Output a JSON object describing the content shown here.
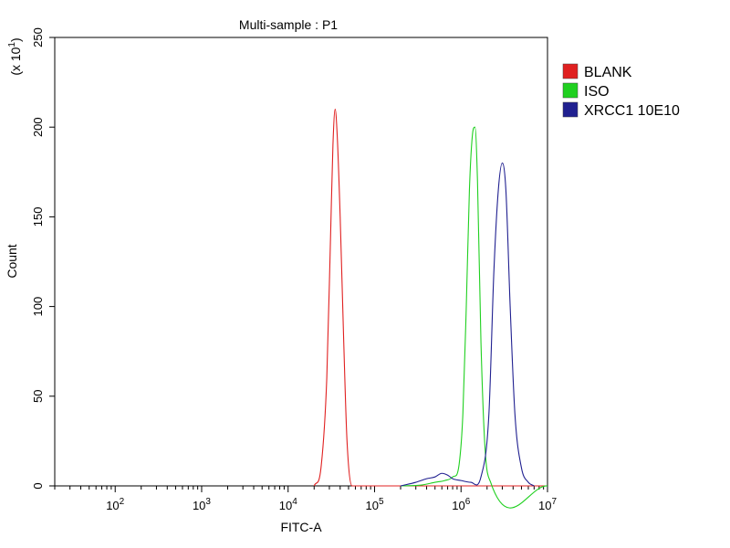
{
  "chart_data": {
    "type": "line",
    "title": "Multi-sample : P1",
    "xlabel": "FITC-A",
    "ylabel": "Count",
    "y_multiplier": "(x 10",
    "y_multiplier_exp": "1",
    "y_multiplier_close": ")",
    "x_scale": "log",
    "xlim": [
      20,
      10000000
    ],
    "ylim": [
      0,
      250
    ],
    "x_ticks": [
      {
        "base": "10",
        "exp": "2",
        "value": 100
      },
      {
        "base": "10",
        "exp": "3",
        "value": 1000
      },
      {
        "base": "10",
        "exp": "4",
        "value": 10000
      },
      {
        "base": "10",
        "exp": "5",
        "value": 100000
      },
      {
        "base": "10",
        "exp": "6",
        "value": 1000000
      },
      {
        "base": "10",
        "exp": "7",
        "value": 10000000
      }
    ],
    "y_ticks": [
      "0",
      "50",
      "100",
      "150",
      "200",
      "250"
    ],
    "grid": false,
    "legend_position": "top-right",
    "series": [
      {
        "name": "BLANK",
        "color": "#e02020",
        "x": [
          20000,
          24000,
          28000,
          31000,
          33000,
          35000,
          37000,
          40000,
          44000,
          48000,
          55000,
          10000000
        ],
        "y": [
          0,
          10,
          60,
          140,
          190,
          210,
          195,
          150,
          80,
          25,
          0,
          0
        ]
      },
      {
        "name": "ISO",
        "color": "#20d020",
        "x": [
          200000,
          350000,
          500000,
          650000,
          800000,
          950000,
          1050000,
          1150000,
          1250000,
          1350000,
          1450000,
          1550000,
          1700000,
          1900000,
          2200000,
          10000000
        ],
        "y": [
          0,
          0.5,
          2,
          3,
          5,
          12,
          40,
          100,
          165,
          195,
          200,
          170,
          80,
          20,
          2,
          0
        ]
      },
      {
        "name": "XRCC1 10E10",
        "color": "#202090",
        "x": [
          200000,
          300000,
          400000,
          500000,
          600000,
          700000,
          800000,
          1000000,
          1300000,
          1700000,
          2100000,
          2400000,
          2700000,
          3000000,
          3300000,
          3700000,
          4200000,
          5000000,
          6000000,
          7000000
        ],
        "y": [
          0,
          2,
          4,
          5,
          7,
          6,
          4,
          3,
          2,
          5,
          40,
          120,
          165,
          180,
          165,
          100,
          40,
          10,
          2,
          0
        ]
      }
    ]
  }
}
